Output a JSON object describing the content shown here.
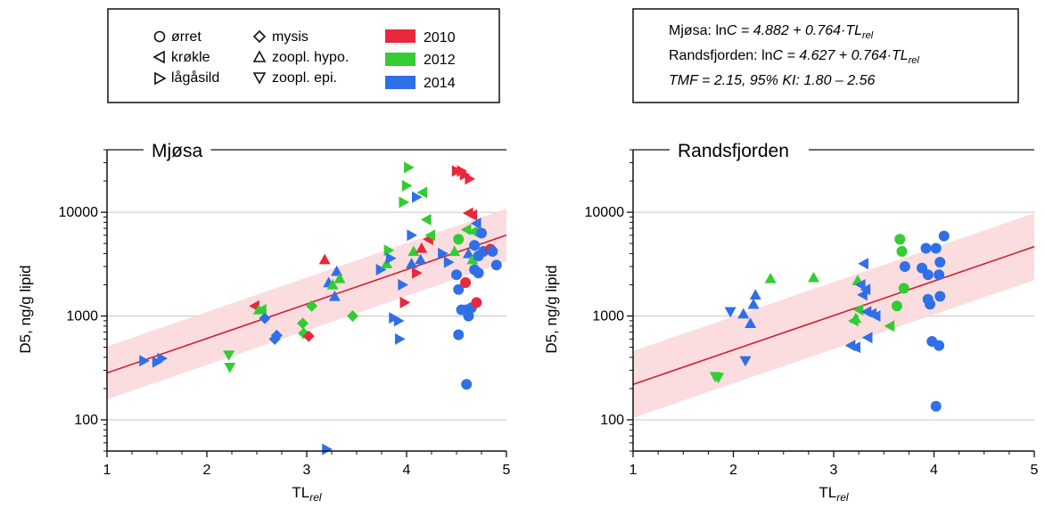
{
  "legend": {
    "col1": [
      "ørret",
      "krøkle",
      "lågåsild"
    ],
    "col2": [
      "mysis",
      "zoopl. hypo.",
      "zoopl. epi."
    ],
    "years": [
      {
        "label": "2010",
        "color": "#e8283c"
      },
      {
        "label": "2012",
        "color": "#33cc33"
      },
      {
        "label": "2014",
        "color": "#2f6fe8"
      }
    ],
    "shapes": [
      "circle",
      "triangle-left",
      "triangle-right",
      "diamond",
      "triangle-up",
      "triangle-down"
    ]
  },
  "equations": {
    "line1_prefix": "Mjøsa: ln",
    "line1_rest": " = 4.882 + 0.764·TL",
    "line2_prefix": "Randsfjorden: ln",
    "line2_rest": " = 4.627 + 0.764·TL",
    "c": "C",
    "rel": "rel",
    "line3": "TMF = 2.15, 95% KI: 1.80 – 2.56"
  },
  "chart_data": [
    {
      "type": "scatter",
      "title": "Mjøsa",
      "xlabel_main": "TL",
      "xlabel_sub": "rel",
      "ylabel": "D5, ng/g lipid",
      "xlim": [
        1,
        5
      ],
      "ylim": [
        50,
        40000
      ],
      "yscale": "log",
      "x_ticks": [
        "1",
        "2",
        "3",
        "4",
        "5"
      ],
      "y_ticks": [
        "100",
        "1000",
        "10000"
      ],
      "fit": {
        "intercept_ln": 4.882,
        "slope": 0.764,
        "band_factor": 1.8,
        "color": "#cc2233",
        "band_color": "#fbd9dc"
      },
      "points": [
        {
          "x": 1.37,
          "y": 370,
          "shape": "triangle-right",
          "year": "2014"
        },
        {
          "x": 1.5,
          "y": 360,
          "shape": "triangle-right",
          "year": "2014"
        },
        {
          "x": 1.55,
          "y": 390,
          "shape": "triangle-right",
          "year": "2014"
        },
        {
          "x": 2.22,
          "y": 420,
          "shape": "triangle-down",
          "year": "2012"
        },
        {
          "x": 2.23,
          "y": 320,
          "shape": "triangle-down",
          "year": "2012"
        },
        {
          "x": 2.48,
          "y": 1250,
          "shape": "triangle-left",
          "year": "2010"
        },
        {
          "x": 2.52,
          "y": 1150,
          "shape": "triangle-up",
          "year": "2012"
        },
        {
          "x": 2.55,
          "y": 1150,
          "shape": "triangle-left",
          "year": "2012"
        },
        {
          "x": 2.58,
          "y": 950,
          "shape": "diamond",
          "year": "2014"
        },
        {
          "x": 2.68,
          "y": 600,
          "shape": "diamond",
          "year": "2014"
        },
        {
          "x": 2.7,
          "y": 650,
          "shape": "diamond",
          "year": "2014"
        },
        {
          "x": 2.96,
          "y": 850,
          "shape": "diamond",
          "year": "2012"
        },
        {
          "x": 2.97,
          "y": 680,
          "shape": "diamond",
          "year": "2012"
        },
        {
          "x": 3.02,
          "y": 640,
          "shape": "diamond",
          "year": "2010"
        },
        {
          "x": 3.05,
          "y": 1250,
          "shape": "diamond",
          "year": "2012"
        },
        {
          "x": 3.18,
          "y": 3500,
          "shape": "triangle-up",
          "year": "2010"
        },
        {
          "x": 3.22,
          "y": 2100,
          "shape": "triangle-up",
          "year": "2014"
        },
        {
          "x": 3.26,
          "y": 2000,
          "shape": "triangle-up",
          "year": "2012"
        },
        {
          "x": 3.28,
          "y": 1550,
          "shape": "triangle-up",
          "year": "2014"
        },
        {
          "x": 3.3,
          "y": 2700,
          "shape": "triangle-up",
          "year": "2014"
        },
        {
          "x": 3.33,
          "y": 2300,
          "shape": "triangle-up",
          "year": "2012"
        },
        {
          "x": 3.46,
          "y": 1000,
          "shape": "diamond",
          "year": "2012"
        },
        {
          "x": 3.2,
          "y": 52,
          "shape": "triangle-right",
          "year": "2014"
        },
        {
          "x": 3.74,
          "y": 2800,
          "shape": "triangle-right",
          "year": "2014"
        },
        {
          "x": 3.8,
          "y": 3200,
          "shape": "triangle-up",
          "year": "2012"
        },
        {
          "x": 3.82,
          "y": 4300,
          "shape": "triangle-right",
          "year": "2012"
        },
        {
          "x": 3.84,
          "y": 3600,
          "shape": "triangle-right",
          "year": "2014"
        },
        {
          "x": 3.87,
          "y": 960,
          "shape": "triangle-right",
          "year": "2014"
        },
        {
          "x": 3.92,
          "y": 900,
          "shape": "triangle-right",
          "year": "2014"
        },
        {
          "x": 3.93,
          "y": 600,
          "shape": "triangle-right",
          "year": "2014"
        },
        {
          "x": 3.96,
          "y": 2000,
          "shape": "triangle-right",
          "year": "2014"
        },
        {
          "x": 3.98,
          "y": 1350,
          "shape": "triangle-right",
          "year": "2010"
        },
        {
          "x": 3.97,
          "y": 12500,
          "shape": "triangle-right",
          "year": "2012"
        },
        {
          "x": 4.0,
          "y": 18000,
          "shape": "triangle-right",
          "year": "2012"
        },
        {
          "x": 4.02,
          "y": 27000,
          "shape": "triangle-right",
          "year": "2012"
        },
        {
          "x": 4.05,
          "y": 6000,
          "shape": "triangle-right",
          "year": "2014"
        },
        {
          "x": 4.05,
          "y": 3200,
          "shape": "triangle-up",
          "year": "2014"
        },
        {
          "x": 4.07,
          "y": 4200,
          "shape": "triangle-up",
          "year": "2012"
        },
        {
          "x": 4.1,
          "y": 2600,
          "shape": "triangle-right",
          "year": "2010"
        },
        {
          "x": 4.1,
          "y": 14000,
          "shape": "triangle-right",
          "year": "2014"
        },
        {
          "x": 4.14,
          "y": 3500,
          "shape": "triangle-up",
          "year": "2014"
        },
        {
          "x": 4.15,
          "y": 4500,
          "shape": "triangle-up",
          "year": "2010"
        },
        {
          "x": 4.16,
          "y": 15500,
          "shape": "triangle-left",
          "year": "2012"
        },
        {
          "x": 4.2,
          "y": 8500,
          "shape": "triangle-left",
          "year": "2012"
        },
        {
          "x": 4.22,
          "y": 5500,
          "shape": "triangle-left",
          "year": "2010"
        },
        {
          "x": 4.24,
          "y": 6000,
          "shape": "triangle-left",
          "year": "2012"
        },
        {
          "x": 4.36,
          "y": 4000,
          "shape": "triangle-right",
          "year": "2014"
        },
        {
          "x": 4.42,
          "y": 3300,
          "shape": "triangle-right",
          "year": "2014"
        },
        {
          "x": 4.48,
          "y": 4200,
          "shape": "triangle-up",
          "year": "2012"
        },
        {
          "x": 4.5,
          "y": 25000,
          "shape": "triangle-right",
          "year": "2010"
        },
        {
          "x": 4.55,
          "y": 25000,
          "shape": "triangle-right",
          "year": "2010"
        },
        {
          "x": 4.58,
          "y": 23000,
          "shape": "triangle-right",
          "year": "2010"
        },
        {
          "x": 4.63,
          "y": 21000,
          "shape": "triangle-right",
          "year": "2010"
        },
        {
          "x": 4.62,
          "y": 9800,
          "shape": "triangle-left",
          "year": "2010"
        },
        {
          "x": 4.66,
          "y": 9400,
          "shape": "triangle-left",
          "year": "2010"
        },
        {
          "x": 4.6,
          "y": 6800,
          "shape": "triangle-left",
          "year": "2012"
        },
        {
          "x": 4.67,
          "y": 6500,
          "shape": "triangle-left",
          "year": "2012"
        },
        {
          "x": 4.7,
          "y": 7800,
          "shape": "triangle-left",
          "year": "2014"
        },
        {
          "x": 4.62,
          "y": 4000,
          "shape": "triangle-up",
          "year": "2014"
        },
        {
          "x": 4.66,
          "y": 3500,
          "shape": "triangle-up",
          "year": "2012"
        },
        {
          "x": 4.52,
          "y": 5500,
          "shape": "circle",
          "year": "2012"
        },
        {
          "x": 4.5,
          "y": 2500,
          "shape": "circle",
          "year": "2014"
        },
        {
          "x": 4.52,
          "y": 1800,
          "shape": "circle",
          "year": "2014"
        },
        {
          "x": 4.55,
          "y": 1150,
          "shape": "circle",
          "year": "2014"
        },
        {
          "x": 4.52,
          "y": 660,
          "shape": "circle",
          "year": "2014"
        },
        {
          "x": 4.59,
          "y": 2100,
          "shape": "circle",
          "year": "2010"
        },
        {
          "x": 4.6,
          "y": 1150,
          "shape": "circle",
          "year": "2014"
        },
        {
          "x": 4.62,
          "y": 1000,
          "shape": "circle",
          "year": "2014"
        },
        {
          "x": 4.6,
          "y": 220,
          "shape": "circle",
          "year": "2014"
        },
        {
          "x": 4.65,
          "y": 1200,
          "shape": "circle",
          "year": "2014"
        },
        {
          "x": 4.68,
          "y": 2800,
          "shape": "circle",
          "year": "2014"
        },
        {
          "x": 4.68,
          "y": 4800,
          "shape": "circle",
          "year": "2014"
        },
        {
          "x": 4.7,
          "y": 1350,
          "shape": "circle",
          "year": "2010"
        },
        {
          "x": 4.72,
          "y": 2600,
          "shape": "circle",
          "year": "2014"
        },
        {
          "x": 4.72,
          "y": 3800,
          "shape": "circle",
          "year": "2014"
        },
        {
          "x": 4.75,
          "y": 6300,
          "shape": "circle",
          "year": "2014"
        },
        {
          "x": 4.77,
          "y": 4200,
          "shape": "circle",
          "year": "2014"
        },
        {
          "x": 4.84,
          "y": 4400,
          "shape": "circle",
          "year": "2010"
        },
        {
          "x": 4.86,
          "y": 4200,
          "shape": "circle",
          "year": "2014"
        },
        {
          "x": 4.9,
          "y": 3100,
          "shape": "circle",
          "year": "2014"
        }
      ]
    },
    {
      "type": "scatter",
      "title": "Randsfjorden",
      "xlabel_main": "TL",
      "xlabel_sub": "rel",
      "ylabel": "D5, ng/g lipid",
      "xlim": [
        1,
        5
      ],
      "ylim": [
        50,
        40000
      ],
      "yscale": "log",
      "x_ticks": [
        "1",
        "2",
        "3",
        "4",
        "5"
      ],
      "y_ticks": [
        "100",
        "1000",
        "10000"
      ],
      "fit": {
        "intercept_ln": 4.627,
        "slope": 0.764,
        "band_factor": 2.1,
        "color": "#cc2233",
        "band_color": "#fbd9dc"
      },
      "points": [
        {
          "x": 1.82,
          "y": 260,
          "shape": "triangle-down",
          "year": "2012"
        },
        {
          "x": 1.85,
          "y": 255,
          "shape": "triangle-down",
          "year": "2012"
        },
        {
          "x": 1.97,
          "y": 1100,
          "shape": "triangle-down",
          "year": "2014"
        },
        {
          "x": 2.1,
          "y": 1050,
          "shape": "triangle-up",
          "year": "2014"
        },
        {
          "x": 2.12,
          "y": 370,
          "shape": "triangle-down",
          "year": "2014"
        },
        {
          "x": 2.17,
          "y": 850,
          "shape": "triangle-up",
          "year": "2014"
        },
        {
          "x": 2.2,
          "y": 1300,
          "shape": "triangle-up",
          "year": "2014"
        },
        {
          "x": 2.22,
          "y": 1600,
          "shape": "triangle-up",
          "year": "2014"
        },
        {
          "x": 2.37,
          "y": 2300,
          "shape": "triangle-up",
          "year": "2012"
        },
        {
          "x": 2.8,
          "y": 2350,
          "shape": "triangle-up",
          "year": "2012"
        },
        {
          "x": 3.17,
          "y": 520,
          "shape": "triangle-left",
          "year": "2014"
        },
        {
          "x": 3.22,
          "y": 500,
          "shape": "triangle-left",
          "year": "2014"
        },
        {
          "x": 3.2,
          "y": 900,
          "shape": "triangle-left",
          "year": "2012"
        },
        {
          "x": 3.22,
          "y": 950,
          "shape": "triangle-up",
          "year": "2012"
        },
        {
          "x": 3.24,
          "y": 2200,
          "shape": "triangle-up",
          "year": "2012"
        },
        {
          "x": 3.25,
          "y": 1150,
          "shape": "triangle-left",
          "year": "2012"
        },
        {
          "x": 3.27,
          "y": 2000,
          "shape": "triangle-left",
          "year": "2014"
        },
        {
          "x": 3.29,
          "y": 1600,
          "shape": "triangle-left",
          "year": "2014"
        },
        {
          "x": 3.3,
          "y": 3200,
          "shape": "triangle-left",
          "year": "2014"
        },
        {
          "x": 3.32,
          "y": 1800,
          "shape": "triangle-left",
          "year": "2014"
        },
        {
          "x": 3.33,
          "y": 1100,
          "shape": "triangle-left",
          "year": "2014"
        },
        {
          "x": 3.34,
          "y": 620,
          "shape": "triangle-left",
          "year": "2014"
        },
        {
          "x": 3.38,
          "y": 1050,
          "shape": "triangle-left",
          "year": "2014"
        },
        {
          "x": 3.42,
          "y": 1000,
          "shape": "triangle-left",
          "year": "2014"
        },
        {
          "x": 3.56,
          "y": 800,
          "shape": "triangle-left",
          "year": "2012"
        },
        {
          "x": 3.63,
          "y": 1250,
          "shape": "circle",
          "year": "2012"
        },
        {
          "x": 3.66,
          "y": 5500,
          "shape": "circle",
          "year": "2012"
        },
        {
          "x": 3.68,
          "y": 4200,
          "shape": "circle",
          "year": "2012"
        },
        {
          "x": 3.7,
          "y": 1850,
          "shape": "circle",
          "year": "2012"
        },
        {
          "x": 3.71,
          "y": 3000,
          "shape": "circle",
          "year": "2014"
        },
        {
          "x": 3.88,
          "y": 2900,
          "shape": "circle",
          "year": "2014"
        },
        {
          "x": 3.92,
          "y": 4500,
          "shape": "circle",
          "year": "2014"
        },
        {
          "x": 3.94,
          "y": 2500,
          "shape": "circle",
          "year": "2014"
        },
        {
          "x": 3.94,
          "y": 1450,
          "shape": "circle",
          "year": "2014"
        },
        {
          "x": 3.96,
          "y": 1300,
          "shape": "circle",
          "year": "2014"
        },
        {
          "x": 3.98,
          "y": 570,
          "shape": "circle",
          "year": "2014"
        },
        {
          "x": 4.02,
          "y": 4500,
          "shape": "circle",
          "year": "2014"
        },
        {
          "x": 4.05,
          "y": 2500,
          "shape": "circle",
          "year": "2014"
        },
        {
          "x": 4.06,
          "y": 3300,
          "shape": "circle",
          "year": "2014"
        },
        {
          "x": 4.06,
          "y": 1550,
          "shape": "circle",
          "year": "2014"
        },
        {
          "x": 4.05,
          "y": 520,
          "shape": "circle",
          "year": "2014"
        },
        {
          "x": 4.02,
          "y": 135,
          "shape": "circle",
          "year": "2014"
        },
        {
          "x": 4.1,
          "y": 5900,
          "shape": "circle",
          "year": "2014"
        }
      ]
    }
  ]
}
